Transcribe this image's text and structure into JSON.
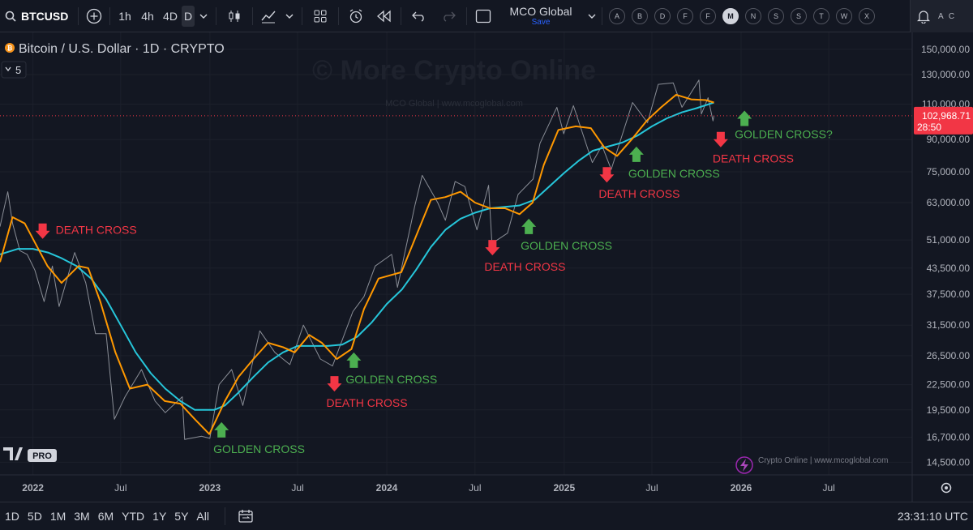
{
  "toolbar": {
    "symbol": "BTCUSD",
    "intervals": [
      "1h",
      "4h",
      "4D",
      "D"
    ],
    "active_interval": "D",
    "layout_name": "MCO Global",
    "layout_status": "Save",
    "shortcuts": [
      "A",
      "B",
      "D",
      "F",
      "F",
      "M",
      "N",
      "S",
      "S",
      "T",
      "W",
      "X"
    ],
    "active_shortcut": "M",
    "right_panel_text": "A C"
  },
  "legend": {
    "title": "Bitcoin / U.S. Dollar · 1D · CRYPTO",
    "collapsed_count": "5"
  },
  "watermark": {
    "main": "© More Crypto Online",
    "sub": "MCO Global   |   www.mcoglobal.com",
    "bottom_brand": "Crypto Online   |   www.mcoglobal.com",
    "tv_logo": "PRO"
  },
  "price_badge": {
    "price": "102,968.71",
    "countdown": "28:50",
    "color": "#f23645"
  },
  "chart_data": {
    "type": "line",
    "title": "Bitcoin / U.S. Dollar · 1D · CRYPTO",
    "y_scale": "log",
    "ylim": [
      13500,
      165000
    ],
    "xlim": [
      "2021-10-25",
      "2026-12-20"
    ],
    "y_ticks": [
      14500,
      16700,
      19500,
      22500,
      26500,
      31500,
      37500,
      43500,
      51000,
      63000,
      75000,
      90000,
      110000,
      130000,
      150000
    ],
    "y_tick_labels": [
      "14,500.00",
      "16,700.00",
      "19,500.00",
      "22,500.00",
      "26,500.00",
      "31,500.00",
      "37,500.00",
      "43,500.00",
      "51,000.00",
      "63,000.00",
      "75,000.00",
      "90,000.00",
      "110,000.00",
      "130,000.00",
      "150,000.00"
    ],
    "x_ticks": [
      {
        "label": "2022",
        "date": "2022-01-01",
        "bold": true
      },
      {
        "label": "Jul",
        "date": "2022-07-01",
        "bold": false
      },
      {
        "label": "2023",
        "date": "2023-01-01",
        "bold": true
      },
      {
        "label": "Jul",
        "date": "2023-07-01",
        "bold": false
      },
      {
        "label": "2024",
        "date": "2024-01-01",
        "bold": true
      },
      {
        "label": "Jul",
        "date": "2024-07-01",
        "bold": false
      },
      {
        "label": "2025",
        "date": "2025-01-01",
        "bold": true
      },
      {
        "label": "Jul",
        "date": "2025-07-01",
        "bold": false
      },
      {
        "label": "2026",
        "date": "2026-01-01",
        "bold": true
      },
      {
        "label": "Jul",
        "date": "2026-07-01",
        "bold": false
      }
    ],
    "current_price": 102968.71,
    "colors": {
      "price": "#b2b5be",
      "ma_fast": "#ff9800",
      "ma_slow": "#26c6da",
      "death": "#f23645",
      "golden": "#4caf50"
    },
    "series": [
      {
        "key": "price",
        "points": [
          [
            "2021-10-25",
            55000
          ],
          [
            "2021-11-10",
            67000
          ],
          [
            "2021-11-20",
            56000
          ],
          [
            "2021-12-05",
            48000
          ],
          [
            "2021-12-20",
            47000
          ],
          [
            "2022-01-05",
            43000
          ],
          [
            "2022-01-24",
            36000
          ],
          [
            "2022-02-10",
            44000
          ],
          [
            "2022-02-24",
            35000
          ],
          [
            "2022-03-28",
            47500
          ],
          [
            "2022-04-20",
            40000
          ],
          [
            "2022-05-10",
            30000
          ],
          [
            "2022-06-01",
            30000
          ],
          [
            "2022-06-18",
            18500
          ],
          [
            "2022-07-10",
            21000
          ],
          [
            "2022-08-13",
            24500
          ],
          [
            "2022-09-10",
            20500
          ],
          [
            "2022-10-01",
            19200
          ],
          [
            "2022-11-05",
            21000
          ],
          [
            "2022-11-10",
            16500
          ],
          [
            "2022-12-15",
            16800
          ],
          [
            "2023-01-01",
            16600
          ],
          [
            "2023-01-20",
            22500
          ],
          [
            "2023-02-15",
            24500
          ],
          [
            "2023-03-10",
            20000
          ],
          [
            "2023-04-14",
            30500
          ],
          [
            "2023-05-15",
            27000
          ],
          [
            "2023-06-15",
            25200
          ],
          [
            "2023-07-13",
            31500
          ],
          [
            "2023-08-17",
            26000
          ],
          [
            "2023-09-11",
            25000
          ],
          [
            "2023-10-23",
            34000
          ],
          [
            "2023-11-15",
            37000
          ],
          [
            "2023-12-08",
            44000
          ],
          [
            "2024-01-11",
            47000
          ],
          [
            "2024-01-23",
            39000
          ],
          [
            "2024-02-28",
            62000
          ],
          [
            "2024-03-14",
            73500
          ],
          [
            "2024-04-15",
            63000
          ],
          [
            "2024-05-01",
            57000
          ],
          [
            "2024-05-21",
            71000
          ],
          [
            "2024-06-10",
            69000
          ],
          [
            "2024-07-05",
            54000
          ],
          [
            "2024-07-29",
            69500
          ],
          [
            "2024-08-05",
            50000
          ],
          [
            "2024-09-06",
            53000
          ],
          [
            "2024-09-28",
            66000
          ],
          [
            "2024-10-29",
            72000
          ],
          [
            "2024-11-12",
            88000
          ],
          [
            "2024-12-17",
            108000
          ],
          [
            "2024-12-31",
            93000
          ],
          [
            "2025-01-20",
            109000
          ],
          [
            "2025-02-28",
            79000
          ],
          [
            "2025-03-20",
            87000
          ],
          [
            "2025-04-08",
            76000
          ],
          [
            "2025-05-22",
            111000
          ],
          [
            "2025-06-22",
            99000
          ],
          [
            "2025-07-14",
            123000
          ],
          [
            "2025-08-14",
            124000
          ],
          [
            "2025-09-01",
            108000
          ],
          [
            "2025-10-06",
            126000
          ],
          [
            "2025-10-11",
            104000
          ],
          [
            "2025-10-25",
            114000
          ],
          [
            "2025-11-04",
            100000
          ],
          [
            "2025-11-06",
            102968
          ]
        ]
      },
      {
        "key": "ma_fast",
        "points": [
          [
            "2021-10-25",
            45000
          ],
          [
            "2021-11-20",
            58000
          ],
          [
            "2021-12-15",
            56000
          ],
          [
            "2022-01-10",
            49000
          ],
          [
            "2022-01-31",
            44000
          ],
          [
            "2022-03-01",
            40000
          ],
          [
            "2022-04-05",
            44000
          ],
          [
            "2022-04-25",
            43500
          ],
          [
            "2022-05-20",
            36000
          ],
          [
            "2022-06-20",
            27000
          ],
          [
            "2022-07-20",
            22000
          ],
          [
            "2022-08-25",
            22500
          ],
          [
            "2022-09-30",
            20500
          ],
          [
            "2022-11-01",
            20200
          ],
          [
            "2022-12-01",
            18500
          ],
          [
            "2022-12-31",
            17000
          ],
          [
            "2023-02-01",
            20500
          ],
          [
            "2023-03-01",
            23500
          ],
          [
            "2023-04-01",
            26000
          ],
          [
            "2023-05-01",
            28500
          ],
          [
            "2023-06-01",
            27800
          ],
          [
            "2023-06-25",
            27000
          ],
          [
            "2023-07-25",
            29800
          ],
          [
            "2023-08-20",
            28500
          ],
          [
            "2023-09-20",
            26000
          ],
          [
            "2023-10-20",
            27500
          ],
          [
            "2023-11-15",
            34500
          ],
          [
            "2023-12-15",
            41000
          ],
          [
            "2024-01-31",
            42500
          ],
          [
            "2024-03-01",
            52000
          ],
          [
            "2024-04-01",
            64000
          ],
          [
            "2024-05-01",
            65000
          ],
          [
            "2024-06-01",
            67000
          ],
          [
            "2024-07-01",
            63000
          ],
          [
            "2024-08-01",
            61000
          ],
          [
            "2024-09-01",
            61000
          ],
          [
            "2024-10-01",
            59000
          ],
          [
            "2024-10-28",
            63000
          ],
          [
            "2024-11-20",
            78000
          ],
          [
            "2024-12-20",
            95000
          ],
          [
            "2025-01-25",
            97000
          ],
          [
            "2025-02-25",
            96000
          ],
          [
            "2025-03-25",
            86000
          ],
          [
            "2025-04-20",
            82000
          ],
          [
            "2025-05-20",
            90000
          ],
          [
            "2025-06-20",
            100000
          ],
          [
            "2025-07-20",
            108000
          ],
          [
            "2025-08-20",
            116000
          ],
          [
            "2025-09-20",
            113000
          ],
          [
            "2025-10-20",
            112500
          ],
          [
            "2025-11-06",
            111000
          ]
        ]
      },
      {
        "key": "ma_slow",
        "points": [
          [
            "2021-10-25",
            47000
          ],
          [
            "2021-12-01",
            48500
          ],
          [
            "2022-01-01",
            48500
          ],
          [
            "2022-02-01",
            47500
          ],
          [
            "2022-03-01",
            46000
          ],
          [
            "2022-04-01",
            44000
          ],
          [
            "2022-05-01",
            41000
          ],
          [
            "2022-06-01",
            36500
          ],
          [
            "2022-07-01",
            31500
          ],
          [
            "2022-08-01",
            27000
          ],
          [
            "2022-09-01",
            24000
          ],
          [
            "2022-10-01",
            22000
          ],
          [
            "2022-11-01",
            20500
          ],
          [
            "2022-12-01",
            19500
          ],
          [
            "2023-01-10",
            19500
          ],
          [
            "2023-02-01",
            20000
          ],
          [
            "2023-03-01",
            21500
          ],
          [
            "2023-04-01",
            23500
          ],
          [
            "2023-05-01",
            25500
          ],
          [
            "2023-06-01",
            27000
          ],
          [
            "2023-07-01",
            28000
          ],
          [
            "2023-08-01",
            28000
          ],
          [
            "2023-09-01",
            28000
          ],
          [
            "2023-10-01",
            28200
          ],
          [
            "2023-11-01",
            29500
          ],
          [
            "2023-12-01",
            32000
          ],
          [
            "2024-01-01",
            35500
          ],
          [
            "2024-02-01",
            38500
          ],
          [
            "2024-03-01",
            43000
          ],
          [
            "2024-04-01",
            49000
          ],
          [
            "2024-05-01",
            54000
          ],
          [
            "2024-06-01",
            57500
          ],
          [
            "2024-07-01",
            59500
          ],
          [
            "2024-08-01",
            61000
          ],
          [
            "2024-09-01",
            61500
          ],
          [
            "2024-10-01",
            62000
          ],
          [
            "2024-11-01",
            64000
          ],
          [
            "2024-12-01",
            69000
          ],
          [
            "2025-01-01",
            74500
          ],
          [
            "2025-02-01",
            80000
          ],
          [
            "2025-03-01",
            84500
          ],
          [
            "2025-04-01",
            86500
          ],
          [
            "2025-05-01",
            88500
          ],
          [
            "2025-06-01",
            92000
          ],
          [
            "2025-07-01",
            97000
          ],
          [
            "2025-08-01",
            101500
          ],
          [
            "2025-09-01",
            105000
          ],
          [
            "2025-10-01",
            107500
          ],
          [
            "2025-11-06",
            111000
          ]
        ]
      }
    ],
    "annotations": [
      {
        "text": "DEATH CROSS",
        "kind": "death",
        "date": "2022-01-21",
        "price": 56000
      },
      {
        "text": "GOLDEN CROSS",
        "kind": "golden",
        "date": "2023-01-25",
        "price": 18200
      },
      {
        "text": "DEATH CROSS",
        "kind": "death",
        "date": "2023-09-15",
        "price": 23600
      },
      {
        "text": "GOLDEN CROSS",
        "kind": "golden",
        "date": "2023-10-25",
        "price": 27000
      },
      {
        "text": "DEATH CROSS",
        "kind": "death",
        "date": "2024-08-06",
        "price": 51000
      },
      {
        "text": "GOLDEN CROSS",
        "kind": "golden",
        "date": "2024-10-20",
        "price": 57500
      },
      {
        "text": "DEATH CROSS",
        "kind": "death",
        "date": "2025-03-30",
        "price": 77000
      },
      {
        "text": "GOLDEN CROSS",
        "kind": "golden",
        "date": "2025-05-30",
        "price": 86500
      },
      {
        "text": "DEATH CROSS",
        "kind": "death",
        "date": "2025-11-20",
        "price": 94000
      },
      {
        "text": "GOLDEN CROSS?",
        "kind": "golden",
        "date": "2026-01-08",
        "price": 106000
      }
    ]
  },
  "bottombar": {
    "ranges": [
      "1D",
      "5D",
      "1M",
      "3M",
      "6M",
      "YTD",
      "1Y",
      "5Y",
      "All"
    ],
    "clock": "23:31:10 UTC"
  }
}
